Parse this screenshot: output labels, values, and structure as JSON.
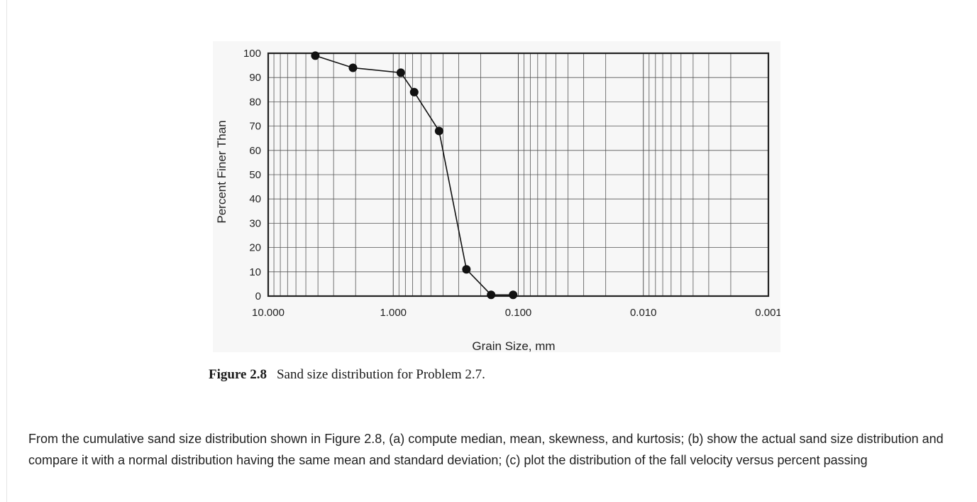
{
  "chart_data": {
    "type": "line",
    "xlabel": "Grain Size, mm",
    "ylabel": "Percent Finer Than",
    "x_scale": "log",
    "x_reversed": true,
    "xlim": [
      10,
      0.001
    ],
    "ylim": [
      0,
      100
    ],
    "x_ticks": [
      10,
      1,
      0.1,
      0.01,
      0.001
    ],
    "x_tick_labels": [
      "10.000",
      "1.000",
      "0.100",
      "0.010",
      "0.001"
    ],
    "y_ticks": [
      0,
      10,
      20,
      30,
      40,
      50,
      60,
      70,
      80,
      90,
      100
    ],
    "y_tick_labels": [
      "0",
      "10",
      "20",
      "30",
      "40",
      "50",
      "60",
      "70",
      "80",
      "90",
      "100"
    ],
    "grid": true,
    "series": [
      {
        "x": [
          4.2,
          2.1,
          0.87,
          0.68,
          0.43,
          0.26,
          0.165,
          0.11
        ],
        "y": [
          99,
          94,
          92,
          84,
          68,
          11,
          0.5,
          0.5
        ]
      }
    ]
  },
  "caption": {
    "number": "Figure 2.8",
    "text": "Sand size distribution for Problem 2.7."
  },
  "problem_text": "From the cumulative sand size distribution shown in Figure 2.8, (a) compute median, mean, skewness, and kurtosis; (b) show the actual sand size distribution and compare it with a normal distribution having the same mean and standard deviation; (c) plot the distribution of the fall velocity versus percent passing",
  "colors": {
    "line": "#111111",
    "grid": "#555555",
    "panel": "#f7f7f7"
  }
}
